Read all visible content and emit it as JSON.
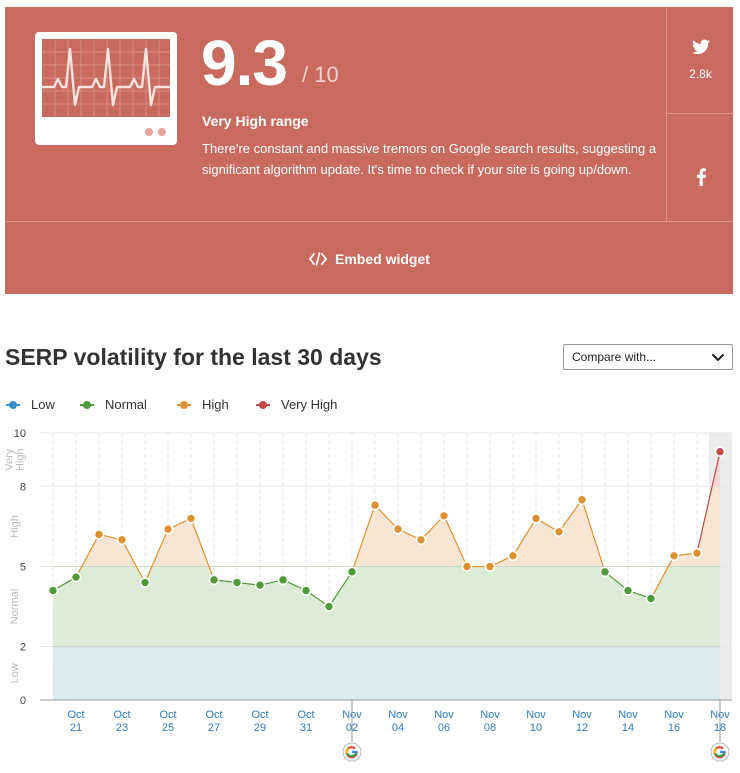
{
  "score": {
    "value": "9.3",
    "max": "/ 10"
  },
  "range": {
    "label": "Very High range",
    "description": "There're constant and massive tremors on Google search results, suggesting a significant algorithm update. It's time to check if your site is going up/down."
  },
  "social": {
    "twitter": {
      "icon": "twitter-icon",
      "count": "2.8k"
    },
    "facebook": {
      "icon": "facebook-icon"
    }
  },
  "embed": {
    "icon": "code-icon",
    "label": "Embed widget"
  },
  "title": "SERP volatility for the last 30 days",
  "compare": {
    "label": "Compare with...",
    "icon": "chevron-down-icon"
  },
  "colors": {
    "card": "#c96a5e",
    "low": "#3a8ec9",
    "normal": "#4f9a3a",
    "high": "#e0912f",
    "very_high": "#c44a48",
    "low_band": "#dceaf4",
    "normal_band": "#dcedd7",
    "high_band": "#f8e6d4"
  },
  "chart_data": {
    "type": "line",
    "legend": [
      {
        "name": "Low",
        "color": "#3a8ec9"
      },
      {
        "name": "Normal",
        "color": "#4f9a3a"
      },
      {
        "name": "High",
        "color": "#e0912f"
      },
      {
        "name": "Very High",
        "color": "#c44a48"
      }
    ],
    "legend_position": "top-left",
    "yticks": [
      "0",
      "2",
      "5",
      "8",
      "10"
    ],
    "ylim": [
      0,
      10
    ],
    "bands": [
      {
        "name": "Low",
        "from": 0,
        "to": 2
      },
      {
        "name": "Normal",
        "from": 2,
        "to": 5
      },
      {
        "name": "High",
        "from": 5,
        "to": 8
      },
      {
        "name": "Very High",
        "from": 8,
        "to": 10
      }
    ],
    "xticks": [
      {
        "month": "Oct",
        "day": "21"
      },
      {
        "month": "Oct",
        "day": "23"
      },
      {
        "month": "Oct",
        "day": "25"
      },
      {
        "month": "Oct",
        "day": "27"
      },
      {
        "month": "Oct",
        "day": "29"
      },
      {
        "month": "Oct",
        "day": "31"
      },
      {
        "month": "Nov",
        "day": "02"
      },
      {
        "month": "Nov",
        "day": "04"
      },
      {
        "month": "Nov",
        "day": "06"
      },
      {
        "month": "Nov",
        "day": "08"
      },
      {
        "month": "Nov",
        "day": "10"
      },
      {
        "month": "Nov",
        "day": "12"
      },
      {
        "month": "Nov",
        "day": "14"
      },
      {
        "month": "Nov",
        "day": "16"
      },
      {
        "month": "Nov",
        "day": "18"
      }
    ],
    "x": [
      "Oct 20",
      "Oct 21",
      "Oct 22",
      "Oct 23",
      "Oct 24",
      "Oct 25",
      "Oct 26",
      "Oct 27",
      "Oct 28",
      "Oct 29",
      "Oct 30",
      "Oct 31",
      "Nov 01",
      "Nov 02",
      "Nov 03",
      "Nov 04",
      "Nov 05",
      "Nov 06",
      "Nov 07",
      "Nov 08",
      "Nov 09",
      "Nov 10",
      "Nov 11",
      "Nov 12",
      "Nov 13",
      "Nov 14",
      "Nov 15",
      "Nov 16",
      "Nov 17",
      "Nov 18"
    ],
    "values": [
      4.1,
      4.6,
      6.2,
      6.0,
      4.4,
      6.4,
      6.8,
      4.5,
      4.4,
      4.3,
      4.5,
      4.1,
      3.5,
      4.8,
      7.3,
      6.4,
      6.0,
      6.9,
      5.0,
      5.0,
      5.4,
      6.8,
      6.3,
      7.5,
      4.8,
      4.1,
      3.8,
      5.4,
      5.5,
      9.3
    ],
    "google_update_markers": [
      "Nov 02",
      "Nov 18"
    ],
    "highlighted": "Nov 18",
    "grid": true
  }
}
